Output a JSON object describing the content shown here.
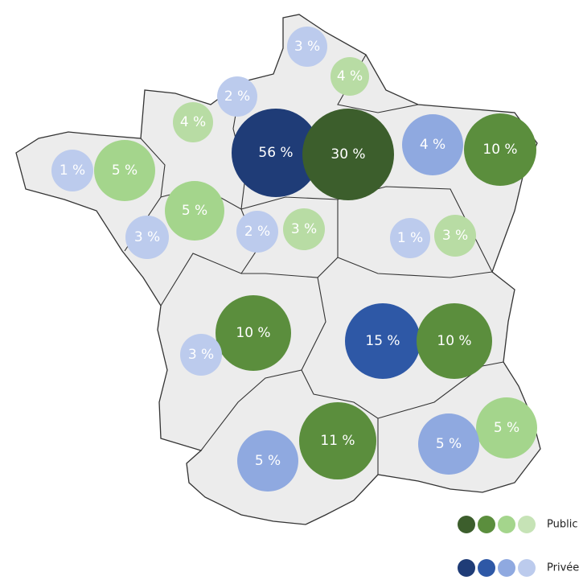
{
  "bubbles": [
    {
      "label": "3 %",
      "color": "#bccbed"
    },
    {
      "label": "4 %",
      "color": "#b8dca4"
    },
    {
      "label": "2 %",
      "color": "#bccbed"
    },
    {
      "label": "4 %",
      "color": "#b8dca4"
    },
    {
      "label": "56 %",
      "color": "#1f3c77"
    },
    {
      "label": "30 %",
      "color": "#3c5e2c"
    },
    {
      "label": "4 %",
      "color": "#8fa9e0"
    },
    {
      "label": "10 %",
      "color": "#5b8e3d"
    },
    {
      "label": "1 %",
      "color": "#bccbed"
    },
    {
      "label": "5 %",
      "color": "#a4d58c"
    },
    {
      "label": "5 %",
      "color": "#a4d58c"
    },
    {
      "label": "3 %",
      "color": "#bccbed"
    },
    {
      "label": "2 %",
      "color": "#bccbed"
    },
    {
      "label": "3 %",
      "color": "#b8dca4"
    },
    {
      "label": "1 %",
      "color": "#bccbed"
    },
    {
      "label": "3 %",
      "color": "#b8dca4"
    },
    {
      "label": "10 %",
      "color": "#5b8e3d"
    },
    {
      "label": "3 %",
      "color": "#bccbed"
    },
    {
      "label": "15 %",
      "color": "#2e58a6"
    },
    {
      "label": "10 %",
      "color": "#5b8e3d"
    },
    {
      "label": "11 %",
      "color": "#5b8e3d"
    },
    {
      "label": "5 %",
      "color": "#a4d58c"
    },
    {
      "label": "5 %",
      "color": "#8fa9e0"
    },
    {
      "label": "5 %",
      "color": "#8fa9e0"
    }
  ],
  "legend": [
    {
      "label": "Public",
      "colors": [
        "#3c5e2c",
        "#5b8e3d",
        "#a4d58c",
        "#c6e3b6"
      ]
    },
    {
      "label": "Privée",
      "colors": [
        "#1f3c77",
        "#2e58a6",
        "#8fa9e0",
        "#bccbed"
      ]
    }
  ]
}
